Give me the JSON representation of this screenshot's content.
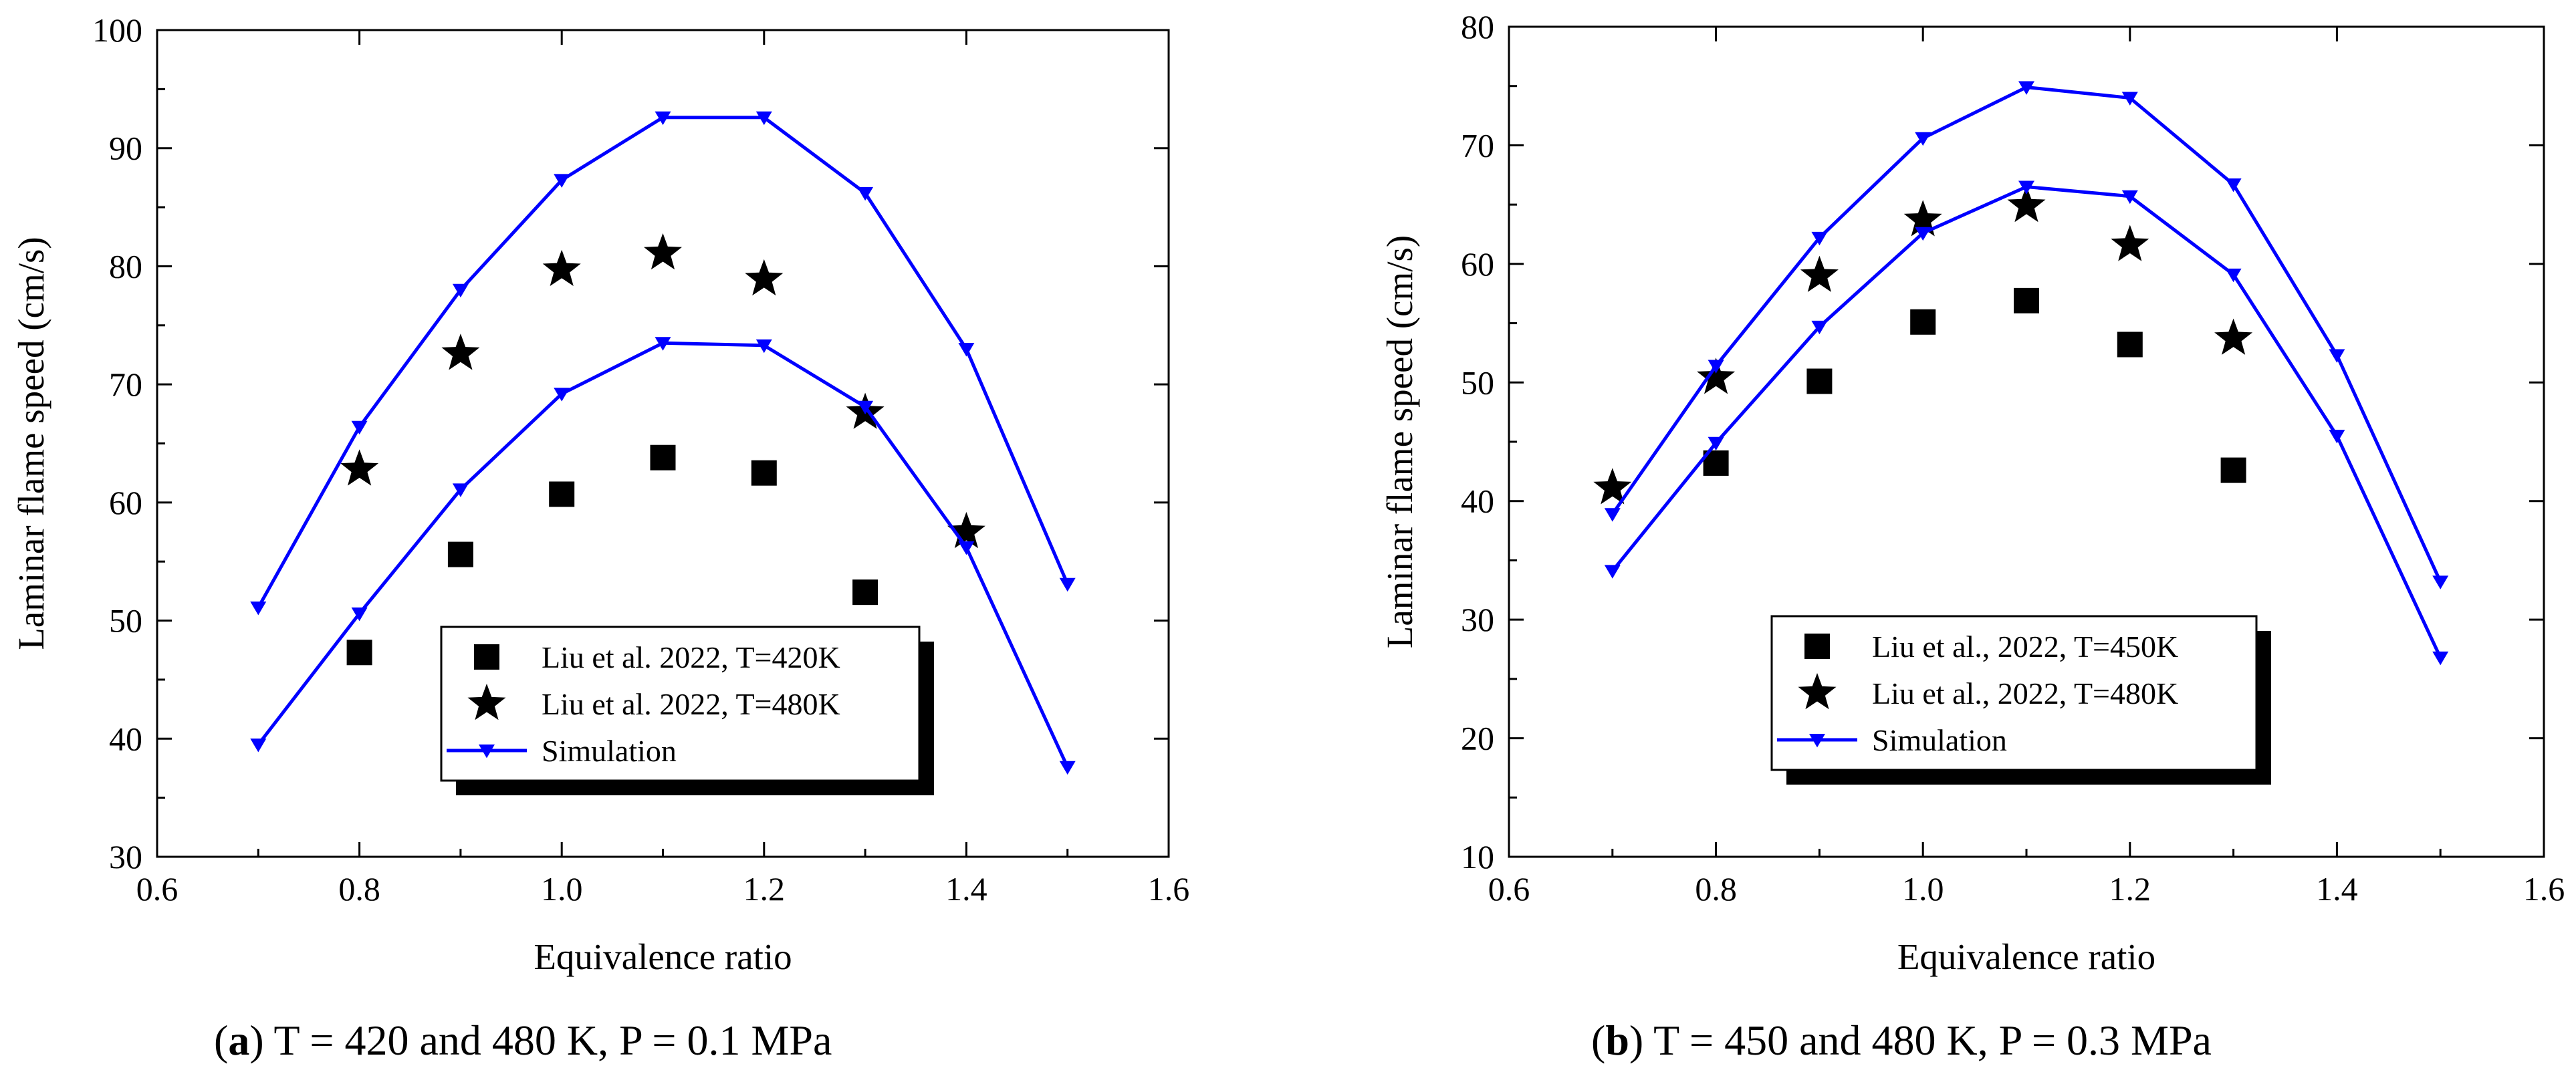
{
  "colors": {
    "simulation": "#0000ff",
    "markers": "#000000",
    "axis": "#000000"
  },
  "chart_data": [
    {
      "type": "scatter+line",
      "caption_label": "a",
      "caption_rest": " T = 420 and 480 K, P = 0.1 MPa",
      "xlabel": "Equivalence ratio",
      "ylabel": "Laminar flame speed (cm/s)",
      "xlim": [
        0.6,
        1.6
      ],
      "ylim": [
        30,
        100
      ],
      "xticks": [
        "0.6",
        "0.8",
        "1.0",
        "1.2",
        "1.4",
        "1.6"
      ],
      "yticks": [
        "30",
        "40",
        "50",
        "60",
        "70",
        "80",
        "90",
        "100"
      ],
      "legend_position": "bottom-center",
      "series": [
        {
          "name": "Liu et al. 2022, T=420K",
          "kind": "square",
          "x": [
            0.8,
            0.9,
            1.0,
            1.1,
            1.2,
            1.3
          ],
          "y": [
            47.3,
            55.6,
            60.7,
            63.8,
            62.5,
            52.4
          ]
        },
        {
          "name": "Liu et al. 2022, T=480K",
          "kind": "star",
          "x": [
            0.8,
            0.9,
            1.0,
            1.1,
            1.2,
            1.3,
            1.4
          ],
          "y": [
            62.8,
            72.6,
            79.7,
            81.1,
            78.9,
            67.6,
            57.5
          ]
        },
        {
          "name": "Simulation",
          "kind": "line",
          "in_legend": true,
          "x": [
            0.7,
            0.8,
            0.9,
            1.0,
            1.1,
            1.2,
            1.3,
            1.4,
            1.5
          ],
          "y": [
            51.1,
            66.4,
            78.0,
            87.3,
            92.6,
            92.6,
            86.2,
            73.0,
            53.1
          ]
        },
        {
          "name": "Simulation",
          "kind": "line",
          "in_legend": false,
          "x": [
            0.7,
            0.8,
            0.9,
            1.0,
            1.1,
            1.2,
            1.3,
            1.4,
            1.5
          ],
          "y": [
            39.5,
            50.6,
            61.1,
            69.2,
            73.5,
            73.3,
            68.1,
            56.2,
            37.6
          ]
        }
      ]
    },
    {
      "type": "scatter+line",
      "caption_label": "b",
      "caption_rest": " T = 450 and 480 K, P = 0.3 MPa",
      "xlabel": "Equivalence ratio",
      "ylabel": "Laminar flame speed (cm/s)",
      "xlim": [
        0.6,
        1.6
      ],
      "ylim": [
        10,
        80
      ],
      "xticks": [
        "0.6",
        "0.8",
        "1.0",
        "1.2",
        "1.4",
        "1.6"
      ],
      "yticks": [
        "10",
        "20",
        "30",
        "40",
        "50",
        "60",
        "70",
        "80"
      ],
      "legend_position": "bottom-center",
      "series": [
        {
          "name": "Liu et al., 2022, T=450K",
          "kind": "square",
          "x": [
            0.8,
            0.9,
            1.0,
            1.1,
            1.2,
            1.3
          ],
          "y": [
            43.2,
            50.1,
            55.1,
            56.9,
            53.2,
            42.6
          ]
        },
        {
          "name": "Liu et al., 2022, T=480K",
          "kind": "star",
          "x": [
            0.7,
            0.8,
            0.9,
            1.0,
            1.1,
            1.2,
            1.3
          ],
          "y": [
            41.1,
            50.4,
            59.0,
            63.7,
            64.9,
            61.6,
            53.7
          ]
        },
        {
          "name": "Simulation",
          "kind": "line",
          "in_legend": true,
          "x": [
            0.7,
            0.8,
            0.9,
            1.0,
            1.1,
            1.2,
            1.3,
            1.4,
            1.5
          ],
          "y": [
            38.9,
            51.4,
            62.2,
            70.6,
            74.9,
            74.0,
            66.7,
            52.3,
            33.2
          ]
        },
        {
          "name": "Simulation",
          "kind": "line",
          "in_legend": false,
          "x": [
            0.7,
            0.8,
            0.9,
            1.0,
            1.1,
            1.2,
            1.3,
            1.4,
            1.5
          ],
          "y": [
            34.1,
            44.9,
            54.7,
            62.6,
            66.5,
            65.7,
            59.1,
            45.5,
            26.8
          ]
        }
      ]
    }
  ]
}
